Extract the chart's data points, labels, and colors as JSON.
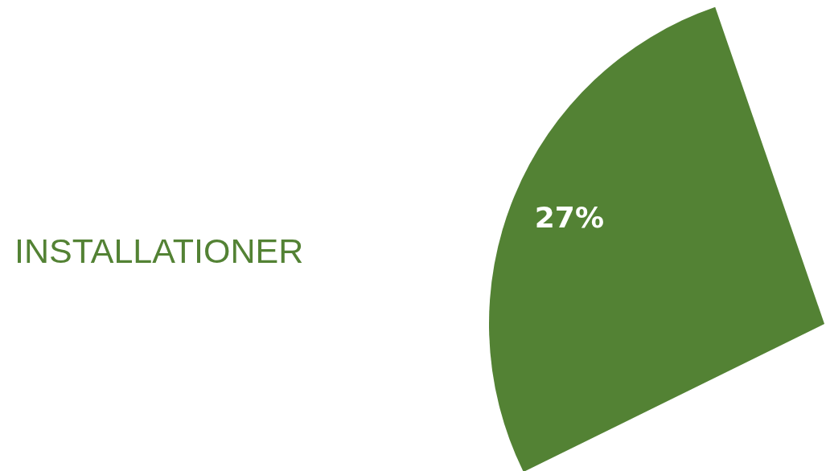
{
  "chart_data": {
    "type": "pie",
    "categories": [
      "INSTALLATIONER"
    ],
    "values": [
      27
    ],
    "colors": [
      "#538234"
    ],
    "value_labels": [
      "27%"
    ]
  }
}
